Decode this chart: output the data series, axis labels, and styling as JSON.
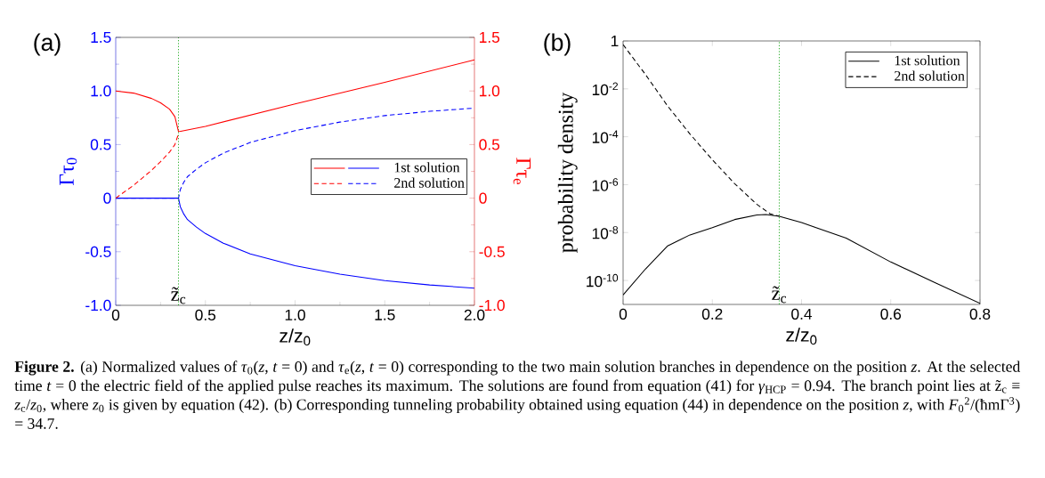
{
  "chart_data": [
    {
      "type": "line",
      "title": "(a)",
      "xlabel": "z/z$_{0}$",
      "ylabel": "Γτ$_{0}$",
      "y2label": "Γτ$_{e}$",
      "legend": "right",
      "xlim": [
        0,
        2
      ],
      "xticks": [
        0,
        0.5,
        {
          "value": 1,
          "label": "1.0"
        },
        1.5,
        {
          "value": 2,
          "label": "2.0"
        }
      ],
      "ylim": [
        -1,
        1.5
      ],
      "yticks": [
        {
          "value": -1,
          "label": "-1.0"
        },
        -0.5,
        0,
        0.5,
        {
          "value": 1,
          "label": "1.0"
        },
        1.5
      ],
      "y2lim": [
        -1,
        1.5
      ],
      "y2ticks": [
        {
          "value": -1,
          "label": "-1.0"
        },
        -0.5,
        0,
        0.5,
        {
          "value": 1,
          "label": "1.0"
        },
        1.5
      ],
      "series": [
        {
          "name": "1st solution",
          "color": "#0000ff",
          "line_style": "solid",
          "x": [
            0,
            0.1,
            0.2,
            0.3,
            0.35,
            0.36,
            0.38,
            0.4,
            0.45,
            0.5,
            0.6,
            0.75,
            1.0,
            1.25,
            1.5,
            1.75,
            2.0
          ],
          "values": [
            0,
            0,
            0,
            0,
            0,
            -0.08,
            -0.15,
            -0.2,
            -0.27,
            -0.33,
            -0.42,
            -0.52,
            -0.63,
            -0.71,
            -0.77,
            -0.81,
            -0.84
          ]
        },
        {
          "name": "2nd solution",
          "color": "#0000ff",
          "line_style": "dashed",
          "x": [
            0,
            0.1,
            0.2,
            0.3,
            0.35,
            0.36,
            0.38,
            0.4,
            0.45,
            0.5,
            0.6,
            0.75,
            1.0,
            1.25,
            1.5,
            1.75,
            2.0
          ],
          "values": [
            0,
            0,
            0,
            0,
            0,
            0.08,
            0.15,
            0.2,
            0.27,
            0.33,
            0.42,
            0.52,
            0.63,
            0.71,
            0.77,
            0.81,
            0.84
          ]
        },
        {
          "color": "#ff0000",
          "line_style": "solid",
          "axis": "y2",
          "x": [
            0,
            0.1,
            0.2,
            0.25,
            0.3,
            0.33,
            0.35,
            0.5,
            1.0,
            1.5,
            2.0
          ],
          "values": [
            1.0,
            0.98,
            0.93,
            0.89,
            0.83,
            0.76,
            0.62,
            0.67,
            0.88,
            1.08,
            1.29
          ]
        },
        {
          "color": "#ff0000",
          "line_style": "dashed",
          "axis": "y2",
          "x": [
            0,
            0.1,
            0.2,
            0.25,
            0.3,
            0.33,
            0.35
          ],
          "values": [
            0,
            0.12,
            0.26,
            0.34,
            0.43,
            0.5,
            0.6
          ]
        }
      ],
      "ref_lines": [
        {
          "axis": "x",
          "value": 0.35,
          "label": "z̃$_{c}$",
          "color": "#00a000",
          "line_style": "dotted"
        }
      ],
      "annotations": [
        "**Figure 2.** (a) Normalized values of *τ*$_{0}$(*z*, *t* = 0) and *τ*$_{e}$(*z*, *t* = 0) corresponding to the two main solution branches in dependence on the position *z*. At the selected time *t* = 0 the electric field of the applied pulse reaches its maximum. The solutions are found from equation (41) for *γ*$_{HCP}$ = 0.94. The branch point lies at z̃$_{c}$ ≡ *z*$_{c}$/*z*$_{0}$, where *z*$_{0}$ is given by equation (42). (b) Corresponding tunneling probability obtained using equation (44) in dependence on the position *z*, with *F*$_{0}$$^{2}$/(ħmΓ$^{3}$) = 34.7."
      ]
    },
    {
      "type": "line",
      "title": "(b)",
      "xlabel": "z/z$_{0}$",
      "ylabel": "probability density",
      "log": "y",
      "legend": "top right",
      "xlim": [
        0,
        0.8
      ],
      "xticks": [
        0,
        0.2,
        0.4,
        0.6,
        0.8
      ],
      "ylim": [
        1e-11,
        1
      ],
      "yticks": [
        {
          "value": 1e-10,
          "label": "10$^{-10}$"
        },
        {
          "value": 1e-08,
          "label": "10$^{-8}$"
        },
        {
          "value": 1e-06,
          "label": "10$^{-6}$"
        },
        {
          "value": 0.0001,
          "label": "10$^{-4}$"
        },
        {
          "value": 0.01,
          "label": "10$^{-2}$"
        },
        1
      ],
      "series": [
        {
          "name": "1st solution",
          "color": "#000000",
          "line_style": "solid",
          "x": [
            0,
            0.05,
            0.1,
            0.15,
            0.2,
            0.25,
            0.3,
            0.32,
            0.35,
            0.4,
            0.5,
            0.6,
            0.7,
            0.8
          ],
          "values": [
            2.5e-11,
            3e-10,
            2.8e-09,
            8e-09,
            1.6e-08,
            3.5e-08,
            5.4e-08,
            5.7e-08,
            4.8e-08,
            2.6e-08,
            5.9e-09,
            5.9e-10,
            8e-11,
            1.1e-11
          ]
        },
        {
          "name": "2nd solution",
          "color": "#000000",
          "line_style": "dashed",
          "x": [
            0,
            0.05,
            0.1,
            0.15,
            0.2,
            0.25,
            0.3,
            0.33,
            0.35
          ],
          "values": [
            0.7,
            0.04,
            0.0019,
            0.00013,
            1.1e-05,
            1.1e-06,
            1.5e-07,
            6e-08,
            4.8e-08
          ]
        }
      ],
      "ref_lines": [
        {
          "axis": "x",
          "value": 0.35,
          "label": "z̃$_{c}$",
          "color": "#00a000",
          "line_style": "dotted"
        }
      ]
    }
  ]
}
